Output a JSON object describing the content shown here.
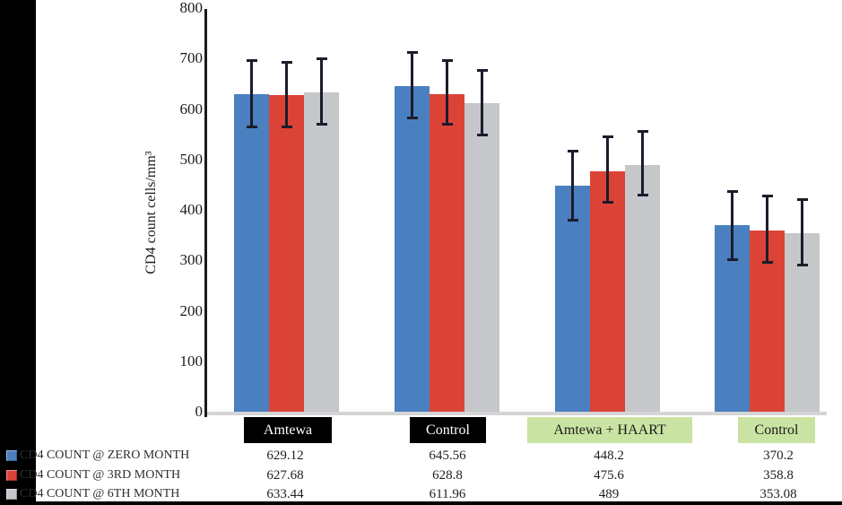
{
  "figure": {
    "background": "#ffffff",
    "left_band_color": "#000000",
    "bottom_band_color": "#000000",
    "axis_color": "#1b1b1b",
    "baseline_color": "#d5d5d7",
    "error_bar_color": "#1c1c2b"
  },
  "chart_data": {
    "type": "bar",
    "title": "",
    "xlabel": "",
    "ylabel": "CD4 count cells/mm³",
    "ylim": [
      0,
      800
    ],
    "yticks": [
      0,
      100,
      200,
      300,
      400,
      500,
      600,
      700,
      800
    ],
    "grid": false,
    "legend_position": "bottom-table",
    "categories": [
      "Amtewa",
      "Control",
      "Amtewa + HAART",
      "Control"
    ],
    "category_label_styles": [
      {
        "bg": "#000000",
        "fg": "#ffffff"
      },
      {
        "bg": "#000000",
        "fg": "#ffffff"
      },
      {
        "bg": "#c9e3a2",
        "fg": "#1a1a1a"
      },
      {
        "bg": "#c9e3a2",
        "fg": "#1a1a1a"
      }
    ],
    "series": [
      {
        "name": "CD4 COUNT @ ZERO MONTH",
        "color": "#4a80bf",
        "values": [
          629.12,
          645.56,
          448.2,
          370.2
        ],
        "err_plus": [
          68,
          67,
          69,
          68
        ],
        "err_minus": [
          66,
          65,
          69,
          70
        ]
      },
      {
        "name": "CD4 COUNT @ 3RD MONTH",
        "color": "#dc4337",
        "values": [
          627.68,
          628.8,
          475.6,
          358.8
        ],
        "err_plus": [
          66,
          68,
          71,
          69
        ],
        "err_minus": [
          64,
          60,
          62,
          64
        ]
      },
      {
        "name": "CD4 COUNT @ 6TH MONTH",
        "color": "#c5c7ca",
        "values": [
          633.44,
          611.96,
          489,
          353.08
        ],
        "err_plus": [
          67,
          66,
          68,
          68
        ],
        "err_minus": [
          64,
          64,
          61,
          63
        ]
      }
    ]
  }
}
